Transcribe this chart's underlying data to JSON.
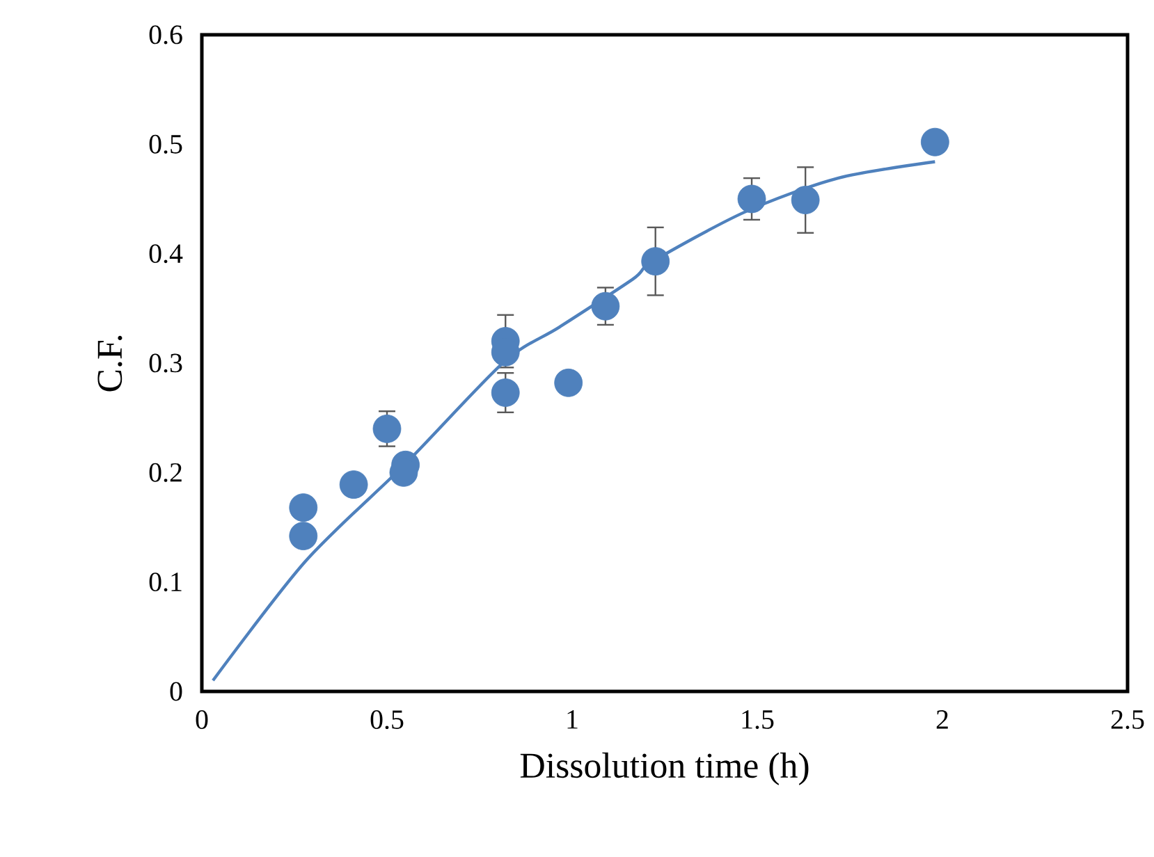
{
  "chart_data": {
    "type": "scatter",
    "xlabel": "Dissolution time (h)",
    "ylabel": "C.F.",
    "xlim": [
      0,
      2.5
    ],
    "ylim": [
      0,
      0.6
    ],
    "xticks": [
      0,
      0.5,
      1,
      1.5,
      2,
      2.5
    ],
    "yticks": [
      0,
      0.1,
      0.2,
      0.3,
      0.4,
      0.5,
      0.6
    ],
    "grid": false,
    "series": [
      {
        "color": "#4f81bd",
        "marker": "circle",
        "x": [
          0.274,
          0.274,
          0.41,
          0.5,
          0.55,
          0.545,
          0.82,
          0.82,
          0.82,
          0.99,
          1.09,
          1.225,
          1.485,
          1.63,
          1.98
        ],
        "values": [
          0.142,
          0.168,
          0.189,
          0.24,
          0.207,
          0.2,
          0.32,
          0.31,
          0.273,
          0.282,
          0.352,
          0.393,
          0.45,
          0.449,
          0.502
        ],
        "errors": [
          null,
          null,
          null,
          0.016,
          null,
          null,
          0.024,
          null,
          0.018,
          null,
          0.017,
          0.031,
          0.019,
          0.03,
          null
        ]
      },
      {
        "type": "line",
        "color": "#4f81bd",
        "marker": "none",
        "line_style": "solid",
        "x": [
          0.03,
          0.28,
          0.55,
          0.816,
          0.966,
          1.165,
          1.218,
          1.466,
          1.718,
          1.98
        ],
        "values": [
          0.01,
          0.119,
          0.208,
          0.301,
          0.333,
          0.377,
          0.393,
          0.438,
          0.469,
          0.484
        ]
      }
    ]
  }
}
